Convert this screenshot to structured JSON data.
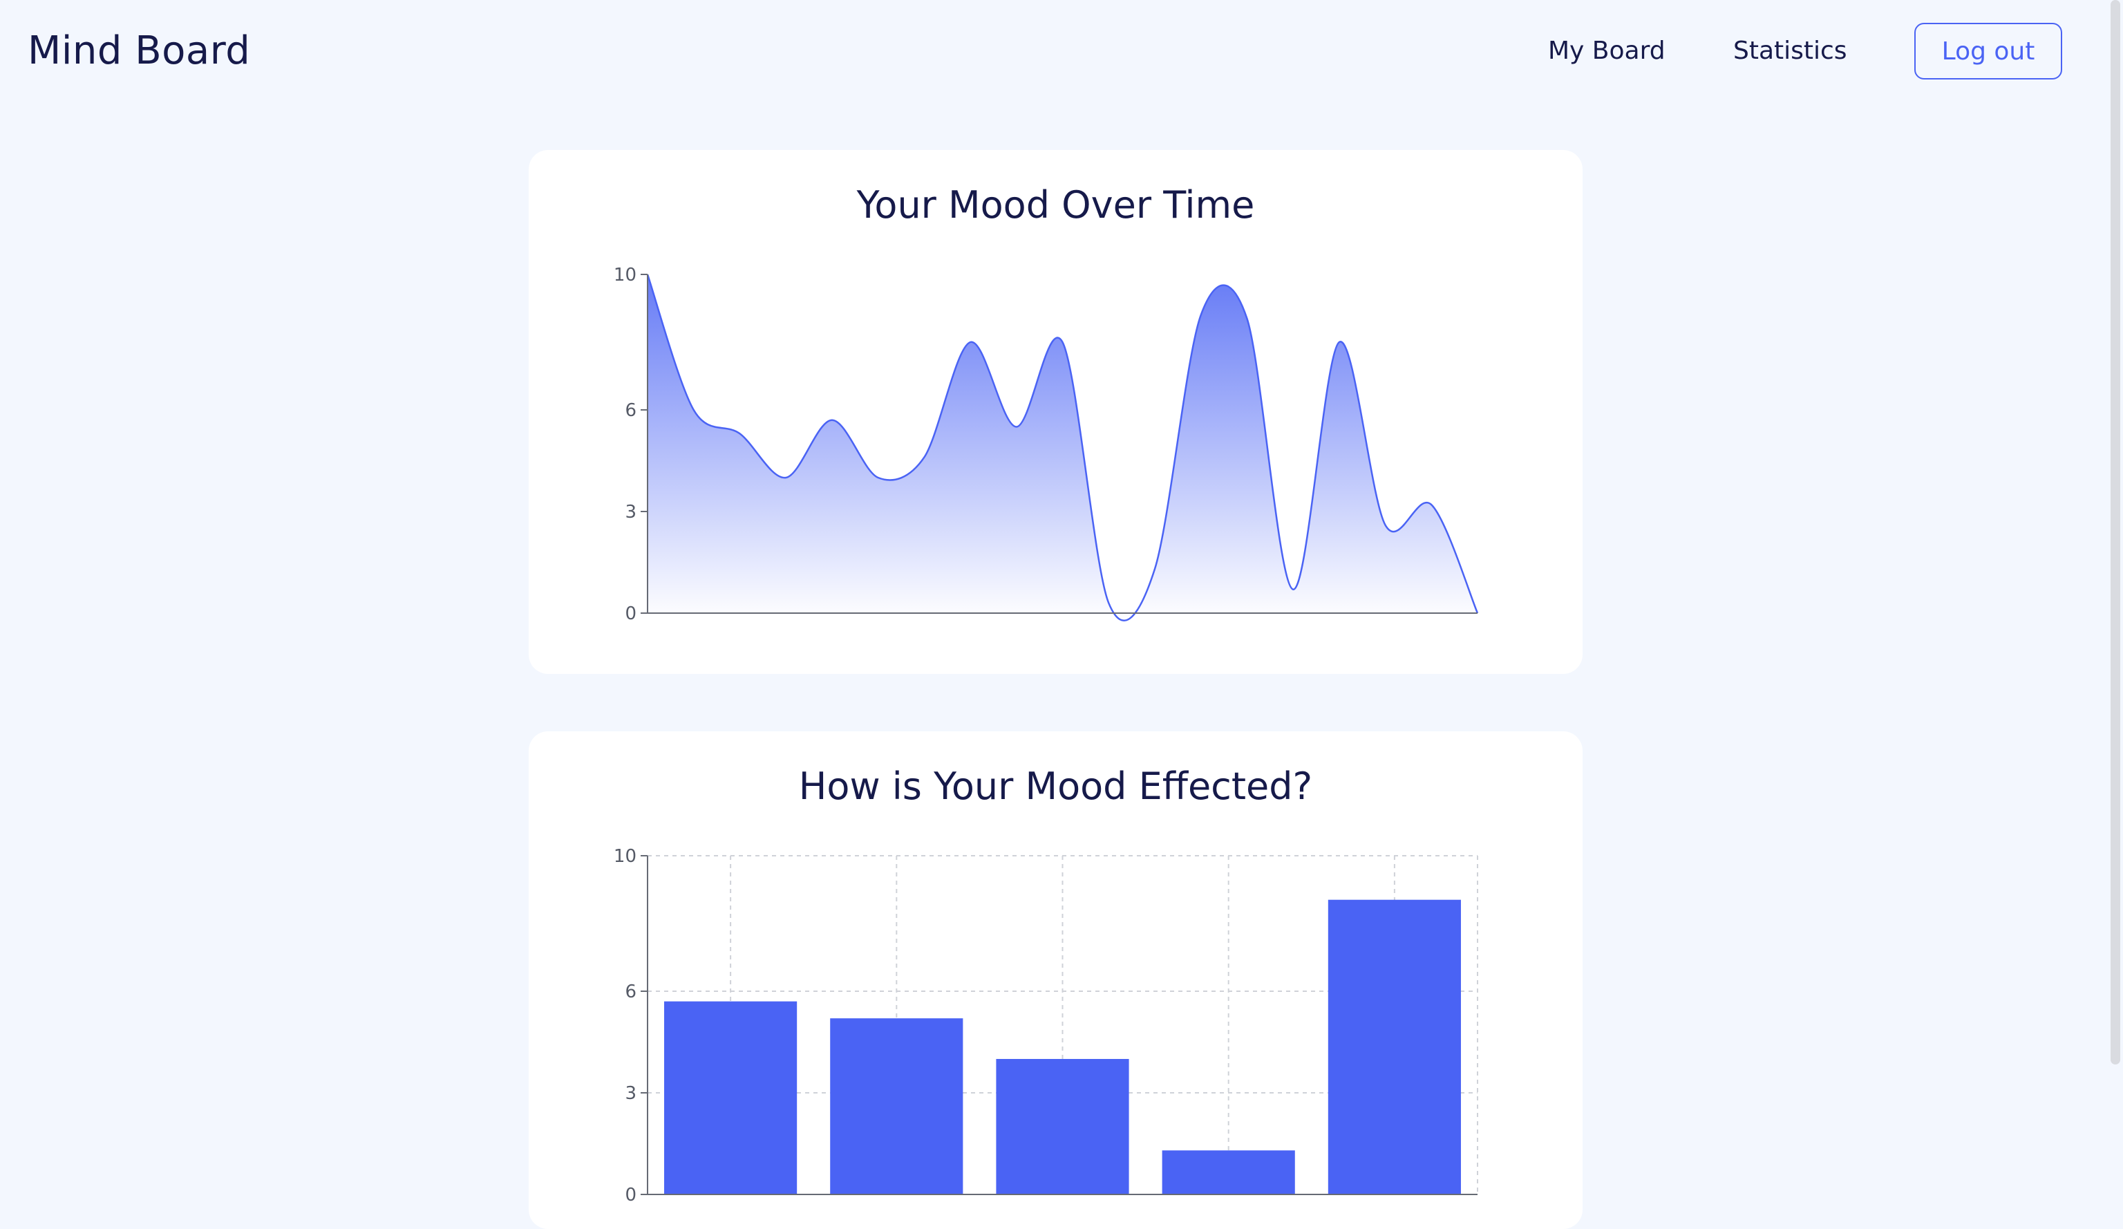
{
  "header": {
    "app_title": "Mind Board",
    "nav": {
      "my_board": "My Board",
      "statistics": "Statistics"
    },
    "logout_label": "Log out"
  },
  "colors": {
    "accent": "#4a63f4",
    "page_background": "#f3f7fe",
    "card_background": "#ffffff",
    "text": "#161a4a"
  },
  "chart_data": [
    {
      "type": "area",
      "title": "Your Mood Over Time",
      "xlabel": "",
      "ylabel": "",
      "ylim": [
        0,
        10
      ],
      "yticks": [
        0,
        3,
        6,
        10
      ],
      "grid": false,
      "x": [
        0,
        1,
        2,
        3,
        4,
        5,
        6,
        7,
        8,
        9,
        10,
        11,
        12,
        13,
        14,
        15,
        16,
        17,
        18
      ],
      "values": [
        10,
        6,
        5.3,
        4,
        5.7,
        4,
        4.6,
        8,
        5.5,
        8,
        0.3,
        1.3,
        8.8,
        8.7,
        0.7,
        8,
        2.6,
        3.2,
        0
      ]
    },
    {
      "type": "bar",
      "title": "How is Your Mood Effected?",
      "xlabel": "",
      "ylabel": "",
      "ylim": [
        0,
        10
      ],
      "yticks": [
        0,
        3,
        6,
        10
      ],
      "grid": true,
      "categories": [
        "",
        "",
        "",
        "",
        ""
      ],
      "values": [
        5.7,
        5.2,
        4,
        1.3,
        8.7
      ]
    }
  ]
}
